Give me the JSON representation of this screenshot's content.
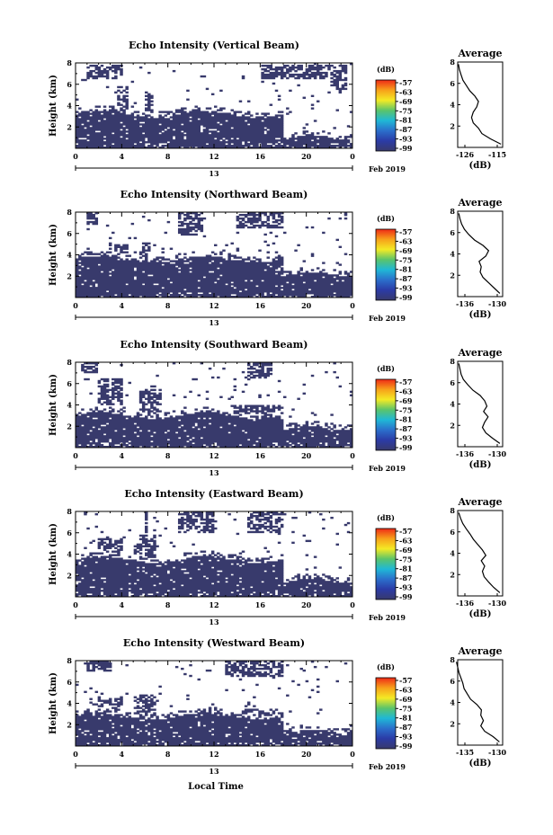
{
  "units_label": "(dB)",
  "average_title": "Average",
  "y_axis_label": "Height (km)",
  "date_label": "Feb 2019",
  "day_label": "13",
  "x_axis_title": "Local Time",
  "time_ticks": [
    "0",
    "4",
    "8",
    "12",
    "16",
    "20",
    "0"
  ],
  "height_ticks": [
    "2",
    "4",
    "6",
    "8"
  ],
  "colorbar_ticks": [
    "-57",
    "-63",
    "-69",
    "-75",
    "-81",
    "-87",
    "-93",
    "-99"
  ],
  "colors": {
    "echo_fill": "#383a6c",
    "colorbar_stops": [
      "#ee2a17",
      "#f7a11a",
      "#f4ea25",
      "#5bc46a",
      "#1fb8d6",
      "#2b6fcb",
      "#2b3ba6",
      "#383a6c"
    ]
  },
  "chart_data": [
    {
      "type": "heatmap",
      "title": "Echo Intensity (Vertical Beam)",
      "xlabel": "",
      "ylabel": "Height (km)",
      "xlim": [
        0,
        24
      ],
      "ylim": [
        0,
        8
      ],
      "colorbar": {
        "label": "(dB)",
        "ticks": [
          -57,
          -63,
          -69,
          -75,
          -81,
          -87,
          -93,
          -99
        ]
      },
      "average_profile": {
        "title": "Average",
        "xlabel": "(dB)",
        "xtick_labels": [
          "-126",
          "-115"
        ],
        "xlim": [
          -127,
          -114
        ],
        "heights": [
          0.3,
          0.8,
          1.3,
          1.8,
          2.3,
          2.8,
          3.3,
          3.8,
          4.3,
          4.8,
          5.3,
          5.8,
          6.3,
          6.8,
          7.3,
          7.8
        ],
        "values": [
          -114.5,
          -117.5,
          -120.0,
          -121.0,
          -122.5,
          -123.0,
          -122.5,
          -121.5,
          -121.0,
          -122.0,
          -123.5,
          -124.5,
          -125.5,
          -126.0,
          -126.5,
          -126.8
        ]
      }
    },
    {
      "type": "heatmap",
      "title": "Echo Intensity (Northward Beam)",
      "xlabel": "",
      "ylabel": "Height (km)",
      "xlim": [
        0,
        24
      ],
      "ylim": [
        0,
        8
      ],
      "colorbar": {
        "label": "(dB)",
        "ticks": [
          -57,
          -63,
          -69,
          -75,
          -81,
          -87,
          -93,
          -99
        ]
      },
      "average_profile": {
        "title": "Average",
        "xlabel": "(dB)",
        "xtick_labels": [
          "-136",
          "-130"
        ],
        "xlim": [
          -137,
          -129
        ],
        "heights": [
          0.3,
          0.8,
          1.3,
          1.8,
          2.3,
          2.8,
          3.3,
          3.8,
          4.3,
          4.8,
          5.3,
          5.8,
          6.3,
          6.8,
          7.3,
          7.8
        ],
        "values": [
          -129.5,
          -130.5,
          -131.5,
          -132.5,
          -133.0,
          -132.8,
          -133.2,
          -132.0,
          -131.5,
          -132.5,
          -134.0,
          -135.0,
          -135.8,
          -136.3,
          -136.6,
          -136.8
        ]
      }
    },
    {
      "type": "heatmap",
      "title": "Echo Intensity (Southward Beam)",
      "xlabel": "",
      "ylabel": "Height (km)",
      "xlim": [
        0,
        24
      ],
      "ylim": [
        0,
        8
      ],
      "colorbar": {
        "label": "(dB)",
        "ticks": [
          -57,
          -63,
          -69,
          -75,
          -81,
          -87,
          -93,
          -99
        ]
      },
      "average_profile": {
        "title": "Average",
        "xlabel": "(dB)",
        "xtick_labels": [
          "-136",
          "-130"
        ],
        "xlim": [
          -137,
          -129
        ],
        "heights": [
          0.3,
          0.8,
          1.3,
          1.8,
          2.3,
          2.8,
          3.3,
          3.8,
          4.3,
          4.8,
          5.3,
          5.8,
          6.3,
          6.8,
          7.3,
          7.8
        ],
        "values": [
          -129.5,
          -130.8,
          -132.0,
          -132.6,
          -132.2,
          -131.6,
          -132.4,
          -131.8,
          -132.2,
          -133.0,
          -134.3,
          -135.2,
          -136.0,
          -136.4,
          -136.6,
          -136.8
        ]
      }
    },
    {
      "type": "heatmap",
      "title": "Echo Intensity (Eastward Beam)",
      "xlabel": "",
      "ylabel": "Height (km)",
      "xlim": [
        0,
        24
      ],
      "ylim": [
        0,
        8
      ],
      "colorbar": {
        "label": "(dB)",
        "ticks": [
          -57,
          -63,
          -69,
          -75,
          -81,
          -87,
          -93,
          -99
        ]
      },
      "average_profile": {
        "title": "Average",
        "xlabel": "(dB)",
        "xtick_labels": [
          "-136",
          "-130"
        ],
        "xlim": [
          -137,
          -129
        ],
        "heights": [
          0.3,
          0.8,
          1.3,
          1.8,
          2.3,
          2.8,
          3.3,
          3.8,
          4.3,
          4.8,
          5.3,
          5.8,
          6.3,
          6.8,
          7.3,
          7.8
        ],
        "values": [
          -129.5,
          -130.6,
          -131.5,
          -132.3,
          -132.6,
          -132.2,
          -132.8,
          -132.0,
          -132.6,
          -133.4,
          -134.2,
          -134.8,
          -135.5,
          -136.1,
          -136.5,
          -136.8
        ]
      }
    },
    {
      "type": "heatmap",
      "title": "Echo Intensity (Westward Beam)",
      "xlabel": "Local Time",
      "ylabel": "Height (km)",
      "xlim": [
        0,
        24
      ],
      "ylim": [
        0,
        8
      ],
      "colorbar": {
        "label": "(dB)",
        "ticks": [
          -57,
          -63,
          -69,
          -75,
          -81,
          -87,
          -93,
          -99
        ]
      },
      "average_profile": {
        "title": "Average",
        "xlabel": "(dB)",
        "xtick_labels": [
          "-135",
          "-130"
        ],
        "xlim": [
          -136,
          -129
        ],
        "heights": [
          0.3,
          0.8,
          1.3,
          1.8,
          2.3,
          2.8,
          3.3,
          3.8,
          4.3,
          4.8,
          5.3,
          5.8,
          6.3,
          6.8,
          7.3,
          7.8
        ],
        "values": [
          -129.5,
          -130.5,
          -131.8,
          -132.4,
          -132.0,
          -132.4,
          -132.3,
          -133.0,
          -134.0,
          -134.5,
          -135.0,
          -135.2,
          -135.5,
          -135.8,
          -136.0,
          -136.2
        ]
      }
    }
  ]
}
